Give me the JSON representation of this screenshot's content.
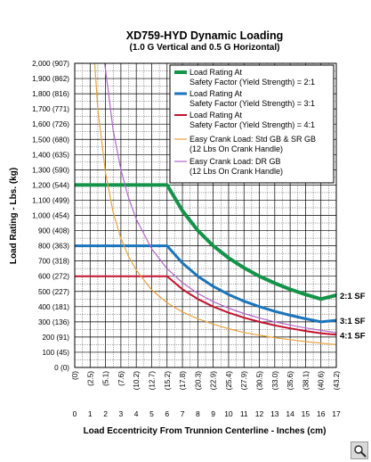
{
  "chart_data": {
    "type": "line",
    "title": "XD759-HYD Dynamic Loading",
    "subtitle": "(1.0 G Vertical and 0.5 G Horizontal)",
    "xlabel": "Load Eccentricity From Trunnion Centerline - Inches (cm)",
    "ylabel": "Load Rating - Lbs. (kg)",
    "xlim": [
      0,
      17
    ],
    "ylim": [
      0,
      2000
    ],
    "x_ticks": [
      {
        "value": 0,
        "label": "0",
        "cm": "(0)"
      },
      {
        "value": 1,
        "label": "1",
        "cm": "(2.5)"
      },
      {
        "value": 2,
        "label": "2",
        "cm": "(5.1)"
      },
      {
        "value": 3,
        "label": "3",
        "cm": "(7.6)"
      },
      {
        "value": 4,
        "label": "4",
        "cm": "(10.2)"
      },
      {
        "value": 5,
        "label": "5",
        "cm": "(12.7)"
      },
      {
        "value": 6,
        "label": "6",
        "cm": "(15.2)"
      },
      {
        "value": 7,
        "label": "7",
        "cm": "(17.8)"
      },
      {
        "value": 8,
        "label": "8",
        "cm": "(20.3)"
      },
      {
        "value": 9,
        "label": "9",
        "cm": "(22.9)"
      },
      {
        "value": 10,
        "label": "10",
        "cm": "(25.4)"
      },
      {
        "value": 11,
        "label": "11",
        "cm": "(27.9)"
      },
      {
        "value": 12,
        "label": "12",
        "cm": "(30.5)"
      },
      {
        "value": 13,
        "label": "13",
        "cm": "(33.0)"
      },
      {
        "value": 14,
        "label": "14",
        "cm": "(35.6)"
      },
      {
        "value": 15,
        "label": "15",
        "cm": "(38.1)"
      },
      {
        "value": 16,
        "label": "16",
        "cm": "(40.6)"
      },
      {
        "value": 17,
        "label": "17",
        "cm": "(43.2)"
      }
    ],
    "y_ticks": [
      {
        "value": 0,
        "label": "0 (0)"
      },
      {
        "value": 100,
        "label": "100 (45)"
      },
      {
        "value": 200,
        "label": "200 (91)"
      },
      {
        "value": 300,
        "label": "300 (136)"
      },
      {
        "value": 400,
        "label": "400 (181)"
      },
      {
        "value": 500,
        "label": "500 (227)"
      },
      {
        "value": 600,
        "label": "600 (272)"
      },
      {
        "value": 700,
        "label": "700 (318)"
      },
      {
        "value": 800,
        "label": "800 (363)"
      },
      {
        "value": 900,
        "label": "900 (408)"
      },
      {
        "value": 1000,
        "label": "1,000 (454)"
      },
      {
        "value": 1100,
        "label": "1,100 (499)"
      },
      {
        "value": 1200,
        "label": "1,200 (544)"
      },
      {
        "value": 1300,
        "label": "1,300 (590)"
      },
      {
        "value": 1400,
        "label": "1,400 (635)"
      },
      {
        "value": 1500,
        "label": "1,500 (680)"
      },
      {
        "value": 1600,
        "label": "1,600 (726)"
      },
      {
        "value": 1700,
        "label": "1,700 (771)"
      },
      {
        "value": 1800,
        "label": "1,800 (816)"
      },
      {
        "value": 1900,
        "label": "1,900 (862)"
      },
      {
        "value": 2000,
        "label": "2,000 (907)"
      }
    ],
    "grid": true,
    "legend_position": "top-right",
    "series": [
      {
        "name": "Load Rating At Safety Factor (Yield Strength) = 2:1",
        "legend_lines": [
          "Load Rating At",
          "Safety Factor (Yield Strength) = 2:1"
        ],
        "color": "#14934a",
        "width": 4,
        "end_label": "2:1 SF",
        "points": [
          [
            0,
            1200
          ],
          [
            6,
            1200
          ],
          [
            7,
            1030
          ],
          [
            8,
            900
          ],
          [
            9,
            800
          ],
          [
            10,
            720
          ],
          [
            11,
            655
          ],
          [
            12,
            600
          ],
          [
            13,
            554
          ],
          [
            14,
            514
          ],
          [
            15,
            480
          ],
          [
            16,
            450
          ],
          [
            17,
            475
          ]
        ]
      },
      {
        "name": "Load Rating At Safety Factor (Yield Strength) = 3:1",
        "legend_lines": [
          "Load Rating At",
          "Safety Factor (Yield Strength) = 3:1"
        ],
        "color": "#1b75bb",
        "width": 3,
        "end_label": "3:1 SF",
        "points": [
          [
            0,
            800
          ],
          [
            6,
            800
          ],
          [
            7,
            686
          ],
          [
            8,
            600
          ],
          [
            9,
            533
          ],
          [
            10,
            480
          ],
          [
            11,
            436
          ],
          [
            12,
            400
          ],
          [
            13,
            369
          ],
          [
            14,
            343
          ],
          [
            15,
            320
          ],
          [
            16,
            300
          ],
          [
            17,
            310
          ]
        ]
      },
      {
        "name": "Load Rating At Safety Factor (Yield Strength) = 4:1",
        "legend_lines": [
          "Load Rating At",
          "Safety Factor (Yield Strength) = 4:1"
        ],
        "color": "#c4122f",
        "width": 2,
        "end_label": "4:1 SF",
        "points": [
          [
            0,
            600
          ],
          [
            6,
            600
          ],
          [
            7,
            514
          ],
          [
            8,
            450
          ],
          [
            9,
            400
          ],
          [
            10,
            360
          ],
          [
            11,
            327
          ],
          [
            12,
            300
          ],
          [
            13,
            277
          ],
          [
            14,
            257
          ],
          [
            15,
            240
          ],
          [
            16,
            225
          ],
          [
            17,
            215
          ]
        ]
      },
      {
        "name": "Easy Crank Load: Std GB & SR GB (12 Lbs On Crank Handle)",
        "legend_lines": [
          "Easy Crank Load: Std GB & SR  GB",
          "(12 Lbs On Crank Handle)"
        ],
        "color": "#e8a33d",
        "width": 1.2,
        "points": [
          [
            1.3,
            2000
          ],
          [
            1.5,
            1700
          ],
          [
            2,
            1280
          ],
          [
            2.5,
            1020
          ],
          [
            3,
            850
          ],
          [
            3.5,
            730
          ],
          [
            4,
            640
          ],
          [
            5,
            510
          ],
          [
            6,
            425
          ],
          [
            7,
            365
          ],
          [
            8,
            320
          ],
          [
            9,
            285
          ],
          [
            10,
            255
          ],
          [
            11,
            230
          ],
          [
            12,
            212
          ],
          [
            13,
            196
          ],
          [
            14,
            183
          ],
          [
            15,
            170
          ],
          [
            16,
            160
          ],
          [
            17,
            150
          ]
        ]
      },
      {
        "name": "Easy Crank Load: DR GB (12 Lbs On Crank Handle)",
        "legend_lines": [
          "Easy Crank Load: DR GB",
          "(12 Lbs On Crank Handle)"
        ],
        "color": "#b266c9",
        "width": 1.2,
        "points": [
          [
            1.95,
            2000
          ],
          [
            2.5,
            1560
          ],
          [
            3,
            1300
          ],
          [
            3.5,
            1115
          ],
          [
            4,
            975
          ],
          [
            5,
            780
          ],
          [
            6,
            650
          ],
          [
            7,
            557
          ],
          [
            8,
            487
          ],
          [
            9,
            433
          ],
          [
            10,
            390
          ],
          [
            11,
            355
          ],
          [
            12,
            325
          ],
          [
            13,
            300
          ],
          [
            14,
            279
          ],
          [
            15,
            260
          ],
          [
            16,
            244
          ],
          [
            17,
            229
          ]
        ]
      }
    ]
  },
  "ui": {
    "zoom_icon": "magnifier-icon"
  }
}
